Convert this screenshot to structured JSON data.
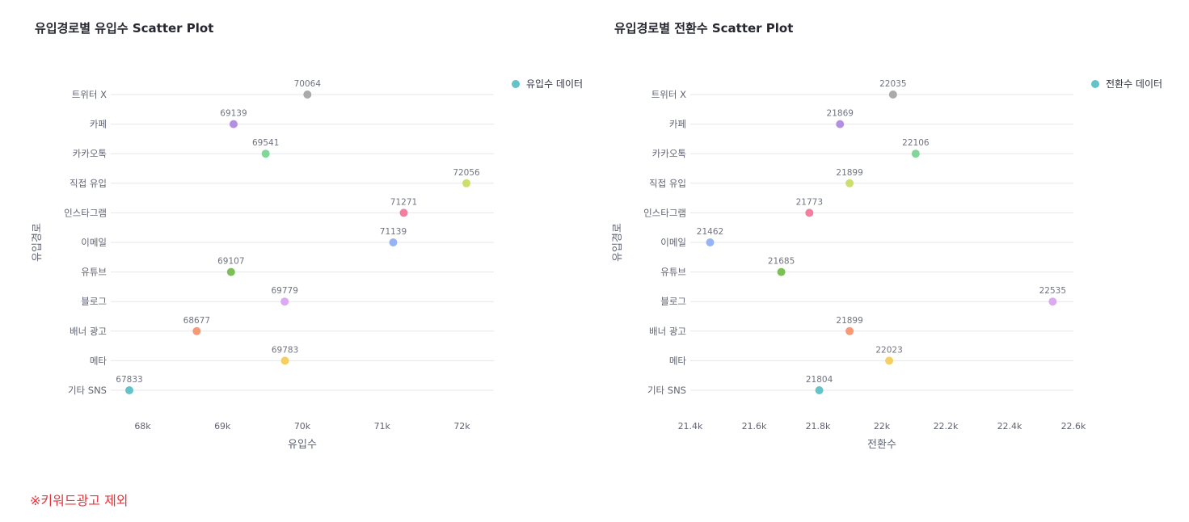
{
  "chart_data": [
    {
      "type": "scatter",
      "title": "유입경로별 유입수 Scatter Plot",
      "xlabel": "유입수",
      "ylabel": "유입경로",
      "categories": [
        "트위터 X",
        "카페",
        "카카오톡",
        "직접 유입",
        "인스타그램",
        "이메일",
        "유튜브",
        "블로그",
        "배너 광고",
        "메타",
        "기타 SNS"
      ],
      "values": [
        70064,
        69139,
        69541,
        72056,
        71271,
        71139,
        69107,
        69779,
        68677,
        69783,
        67833
      ],
      "colors": [
        "#aaaaaa",
        "#b48ee4",
        "#82d69a",
        "#cede6b",
        "#f27ea0",
        "#96b4f4",
        "#7cbf58",
        "#dcaaf0",
        "#f89874",
        "#f4d064",
        "#62c4c8"
      ],
      "xlim": [
        67600,
        72400
      ],
      "xticks": [
        68000,
        69000,
        70000,
        71000,
        72000
      ],
      "xtick_labels": [
        "68k",
        "69k",
        "70k",
        "71k",
        "72k"
      ],
      "legend": {
        "label": "유입수 데이터",
        "color": "#62c4c8",
        "position": "top-right"
      },
      "grid": "horizontal"
    },
    {
      "type": "scatter",
      "title": "유입경로별 전환수 Scatter Plot",
      "xlabel": "전환수",
      "ylabel": "유입경로",
      "categories": [
        "트위터 X",
        "카페",
        "카카오톡",
        "직접 유입",
        "인스타그램",
        "이메일",
        "유튜브",
        "블로그",
        "배너 광고",
        "메타",
        "기타 SNS"
      ],
      "values": [
        22035,
        21869,
        22106,
        21899,
        21773,
        21462,
        21685,
        22535,
        21899,
        22023,
        21804
      ],
      "colors": [
        "#aaaaaa",
        "#b48ee4",
        "#82d69a",
        "#cede6b",
        "#f27ea0",
        "#96b4f4",
        "#7cbf58",
        "#dcaaf0",
        "#f89874",
        "#f4d064",
        "#62c4c8"
      ],
      "xlim": [
        21400,
        22600
      ],
      "xticks": [
        21400,
        21600,
        21800,
        22000,
        22200,
        22400,
        22600
      ],
      "xtick_labels": [
        "21.4k",
        "21.6k",
        "21.8k",
        "22k",
        "22.2k",
        "22.4k",
        "22.6k"
      ],
      "legend": {
        "label": "전환수 데이터",
        "color": "#62c4c8",
        "position": "top-right"
      },
      "grid": "horizontal"
    }
  ],
  "footnote": "※키워드광고 제외"
}
